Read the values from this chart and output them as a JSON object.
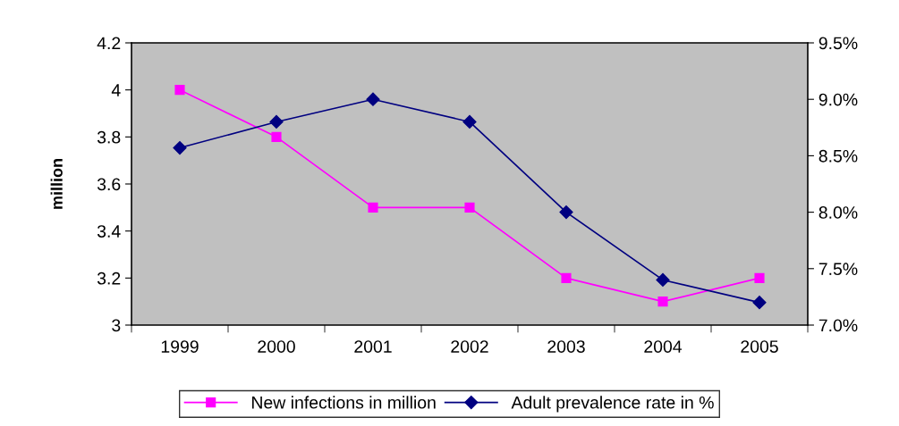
{
  "chart_data": {
    "type": "line",
    "ylabel": "million",
    "categories": [
      "1999",
      "2000",
      "2001",
      "2002",
      "2003",
      "2004",
      "2005"
    ],
    "series": [
      {
        "name": "New infections in million",
        "color": "#ff00ff",
        "marker": "square",
        "values": [
          4.0,
          3.8,
          3.5,
          3.5,
          3.2,
          3.1,
          3.2
        ]
      },
      {
        "name": "Adult prevalence rate in %",
        "color": "#000080",
        "marker": "diamond",
        "axis": "y2",
        "values": [
          8.57,
          8.8,
          9.0,
          8.8,
          8.0,
          7.4,
          7.2
        ]
      }
    ],
    "ylim": [
      3,
      4.2
    ],
    "yticks": [
      3,
      3.2,
      3.4,
      3.6,
      3.8,
      4,
      4.2
    ],
    "y2lim": [
      7.0,
      9.5
    ],
    "y2ticks": [
      {
        "value": 7.0,
        "label": "7.0%"
      },
      {
        "value": 7.5,
        "label": "7.5%"
      },
      {
        "value": 8.0,
        "label": "8.0%"
      },
      {
        "value": 8.5,
        "label": "8.5%"
      },
      {
        "value": 9.0,
        "label": "9.0%"
      },
      {
        "value": 9.5,
        "label": "9.5%"
      }
    ],
    "grid": false,
    "legend": "bottom",
    "line_style": "solid"
  }
}
